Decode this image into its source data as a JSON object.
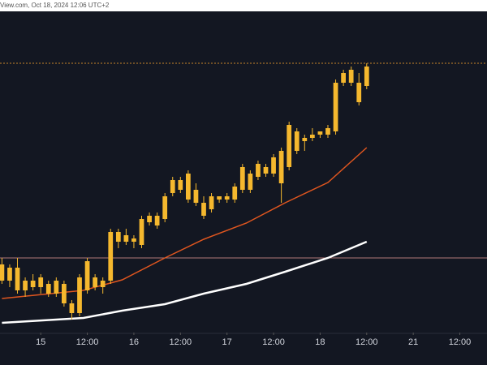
{
  "header": {
    "text": "View.com, Oct 18, 2024 12:06 UTC+2"
  },
  "chart_data": {
    "type": "candlestick",
    "xlim": [
      -10.5,
      115
    ],
    "ylim": [
      0,
      100
    ],
    "xticks": [
      {
        "value": 0,
        "label": "15"
      },
      {
        "value": 12,
        "label": "12:00"
      },
      {
        "value": 24,
        "label": "16"
      },
      {
        "value": 36,
        "label": "12:00"
      },
      {
        "value": 48,
        "label": "17"
      },
      {
        "value": 60,
        "label": "12:00"
      },
      {
        "value": 72,
        "label": "18"
      },
      {
        "value": 84,
        "label": "12:00"
      },
      {
        "value": 96,
        "label": "21"
      },
      {
        "value": 108,
        "label": "12:00"
      }
    ],
    "candles": {
      "color": "#f5b82e",
      "x": [
        -10,
        -8,
        -6,
        -4,
        -2,
        0,
        2,
        4,
        6,
        8,
        10,
        12,
        14,
        16,
        18,
        20,
        22,
        24,
        26,
        28,
        30,
        32,
        34,
        36,
        38,
        40,
        42,
        44,
        46,
        48,
        50,
        52,
        54,
        56,
        58,
        60,
        62,
        64,
        66,
        68,
        70,
        72,
        74,
        76,
        78,
        80,
        82,
        84
      ],
      "open": [
        21,
        16,
        20,
        13,
        16,
        14,
        15,
        12,
        15,
        9,
        6,
        13,
        17,
        14,
        16,
        28,
        30,
        28,
        27,
        34,
        36,
        35,
        43,
        47,
        41,
        44,
        40,
        38,
        41,
        41,
        41,
        44,
        49,
        48,
        51,
        49,
        46,
        51,
        62,
        59,
        60,
        61,
        61,
        62,
        77,
        77,
        77,
        76
      ],
      "high": [
        23,
        21,
        23,
        17,
        18,
        18,
        16,
        17,
        16,
        10,
        18,
        23,
        18,
        17,
        32,
        32,
        32,
        30,
        36,
        37,
        37,
        43,
        48,
        48,
        50,
        46,
        42,
        43,
        42,
        43,
        46,
        52,
        50,
        53,
        52,
        55,
        57,
        65,
        63,
        61,
        63,
        62,
        64,
        78,
        81,
        82,
        80,
        83
      ],
      "low": [
        15,
        14,
        12,
        11,
        13,
        12,
        11,
        11,
        8,
        4,
        5,
        12,
        13,
        12,
        15,
        26,
        27,
        26,
        26,
        33,
        32,
        34,
        42,
        43,
        40,
        39,
        35,
        37,
        40,
        40,
        40,
        43,
        43,
        47,
        48,
        48,
        40,
        50,
        55,
        56,
        59,
        60,
        60,
        61,
        76,
        76,
        70,
        75
      ],
      "close": [
        16,
        20,
        13,
        16,
        14,
        17,
        12,
        16,
        9,
        6,
        17,
        22,
        14,
        16,
        31,
        31,
        28,
        29,
        35,
        36,
        33,
        42,
        47,
        44,
        49,
        40,
        36,
        42,
        42,
        42,
        45,
        51,
        44,
        52,
        49,
        54,
        56,
        64,
        56,
        60,
        61,
        62,
        63,
        77,
        80,
        81,
        71,
        82
      ]
    },
    "lines": [
      {
        "color": "#e0561f",
        "x": [
          -10,
          11,
          21,
          32,
          42,
          53,
          63,
          74,
          84
        ],
        "values": [
          10.5,
          13,
          16.25,
          23,
          28.75,
          33.75,
          40,
          46.25,
          57
        ]
      },
      {
        "color": "#ffffff",
        "x": [
          -10,
          11,
          21,
          32,
          42,
          53,
          63,
          74,
          84
        ],
        "values": [
          3,
          4.5,
          6.75,
          8.75,
          12,
          15,
          18.75,
          23,
          28
        ]
      }
    ],
    "levels": [
      {
        "value": 83,
        "color": "#c8862a"
      },
      {
        "value": 23,
        "color": "#b07a78"
      }
    ]
  }
}
